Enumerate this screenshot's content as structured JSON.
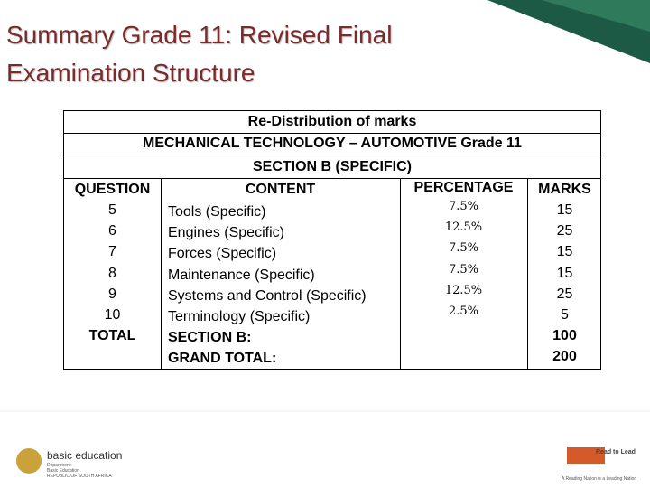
{
  "title": "Summary Grade 11: Revised Final Examination Structure",
  "table": {
    "heading": [
      "Re-Distribution of marks",
      "MECHANICAL TECHNOLOGY – AUTOMOTIVE  Grade 11",
      "SECTION B (SPECIFIC)"
    ],
    "columns": [
      "QUESTION",
      "CONTENT",
      "PERCENTAGE",
      "MARKS"
    ],
    "rows": [
      {
        "question": "5",
        "content": "Tools (Specific)",
        "percentage": "7.5%",
        "marks": "15"
      },
      {
        "question": "6",
        "content": "Engines (Specific)",
        "percentage": "12.5%",
        "marks": "25"
      },
      {
        "question": "7",
        "content": "Forces (Specific)",
        "percentage": "7.5%",
        "marks": "15"
      },
      {
        "question": "8",
        "content": "Maintenance (Specific)",
        "percentage": "7.5%",
        "marks": "15"
      },
      {
        "question": "9",
        "content": "Systems and Control (Specific)",
        "percentage": "12.5%",
        "marks": "25"
      },
      {
        "question": "10",
        "content": "Terminology (Specific)",
        "percentage": "2.5%",
        "marks": "5"
      },
      {
        "question": "TOTAL",
        "content": "SECTION B:",
        "marks": "100"
      },
      {
        "content": "GRAND TOTAL:",
        "marks": "200"
      }
    ]
  },
  "footer": {
    "left_logo": "basic education",
    "left_sub": [
      "Department:",
      "Basic Education",
      "REPUBLIC OF SOUTH AFRICA"
    ],
    "right_logo": "Read to Lead",
    "right_sub": "A Reading Nation is a Leading Nation"
  }
}
